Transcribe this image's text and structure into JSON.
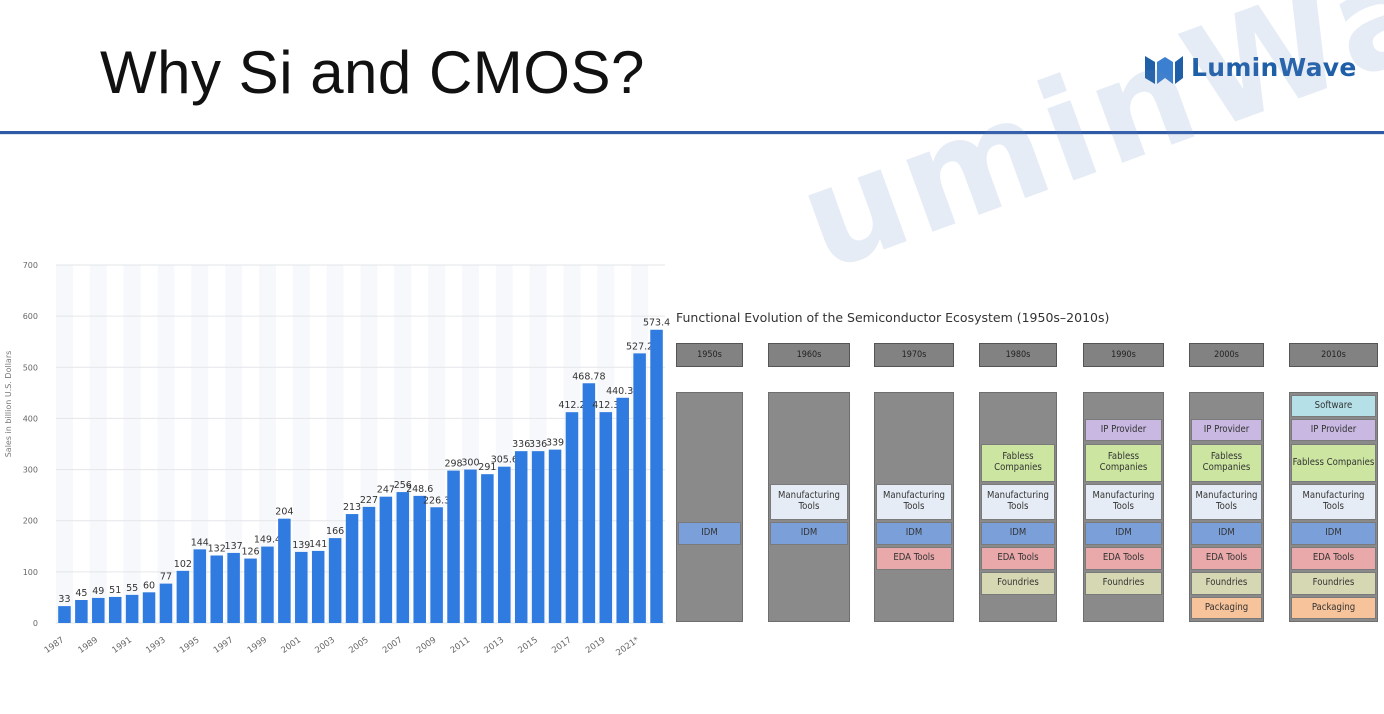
{
  "header": {
    "title": "Why Si and CMOS?",
    "logo_text": "LuminWave",
    "watermark_text": "uminWave"
  },
  "colors": {
    "accent": "#2f5aa6",
    "bar": "#2f7be0",
    "idm": "#7b9fd8",
    "eda": "#e9a8aa",
    "foundries": "#d6d8b4",
    "fabless": "#cce6a2",
    "ip": "#c9b9e2",
    "packaging": "#f7c39a",
    "software": "#b5e0e8",
    "mfg": "#e6ecf5",
    "gray": "#8a8a8a"
  },
  "chart_data": {
    "type": "bar",
    "title": "",
    "ylabel": "Sales in billion U.S. Dollars",
    "xlabel": "",
    "ylim": [
      0,
      700
    ],
    "yticks": [
      "0",
      "100",
      "200",
      "300",
      "400",
      "500",
      "600",
      "700"
    ],
    "categories": [
      "1987",
      "1988",
      "1989",
      "1990",
      "1991",
      "1992",
      "1993",
      "1994",
      "1995",
      "1996",
      "1997",
      "1998",
      "1999",
      "2000",
      "2001",
      "2002",
      "2003",
      "2004",
      "2005",
      "2006",
      "2007",
      "2008",
      "2009",
      "2010",
      "2011",
      "2012",
      "2013",
      "2014",
      "2015",
      "2016",
      "2017",
      "2018",
      "2019",
      "2020",
      "2021",
      "2022"
    ],
    "xtick_labels": [
      "1987",
      "",
      "1989",
      "",
      "1991",
      "",
      "1993",
      "",
      "1995",
      "",
      "1997",
      "",
      "1999",
      "",
      "2001",
      "",
      "2003",
      "",
      "2005",
      "",
      "2007",
      "",
      "2009",
      "",
      "2011",
      "",
      "2013",
      "",
      "2015",
      "",
      "2017",
      "",
      "2019",
      "",
      "2021*",
      ""
    ],
    "values": [
      33,
      45,
      49,
      51,
      55,
      60,
      77,
      102,
      144,
      132,
      137,
      126,
      149.4,
      204,
      139,
      141,
      166,
      213,
      227,
      247,
      256,
      248.6,
      226.3,
      298,
      300,
      291,
      305.6,
      336,
      336,
      339,
      412.2,
      468.78,
      412.3,
      440.39,
      527.2,
      573.4
    ],
    "data_labels": [
      "33",
      "45",
      "49",
      "51",
      "55",
      "60",
      "77",
      "102",
      "144",
      "132",
      "137",
      "126",
      "149.4",
      "204",
      "139",
      "141",
      "166",
      "213",
      "227",
      "247",
      "256",
      "248.6",
      "226.3",
      "298",
      "300",
      "291",
      "305.6",
      "336",
      "336",
      "339",
      "412.2",
      "468.78",
      "412.3",
      "440.39",
      "527.2",
      "573.4"
    ]
  },
  "ecosystem": {
    "title": "Functional Evolution of the Semiconductor Ecosystem (1950s–2010s)",
    "eras": [
      "1950s",
      "1960s",
      "1970s",
      "1980s",
      "1990s",
      "2000s",
      "2010s"
    ],
    "labels": {
      "idm": "IDM",
      "eda": "EDA Tools",
      "mfg": "Manufacturing Tools",
      "fabless": "Fabless Companies",
      "foundries": "Foundries",
      "ip": "IP Provider",
      "packaging": "Packaging",
      "software": "Software"
    }
  }
}
